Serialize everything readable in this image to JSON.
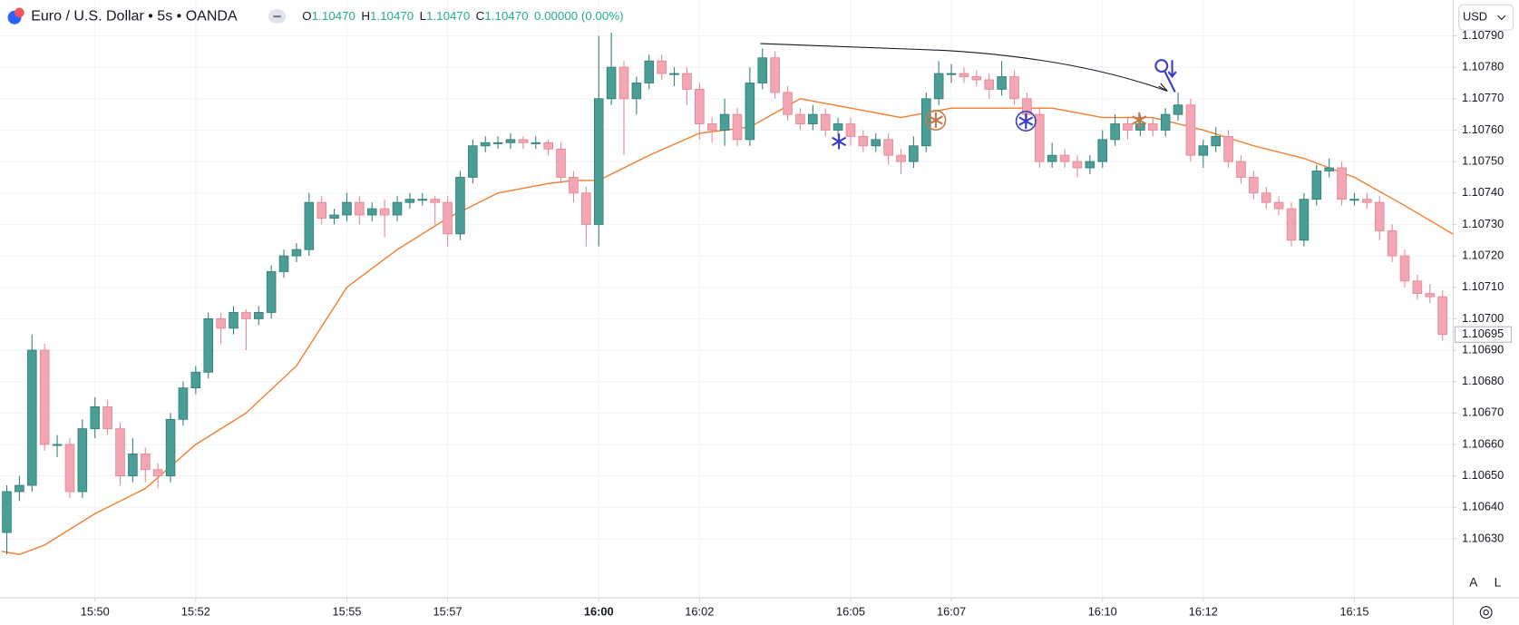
{
  "chart_data": {
    "type": "candlestick",
    "title": "Euro / U.S. Dollar • 5s • OANDA",
    "ohlc_header": [
      {
        "key": "O",
        "value": "1.10470"
      },
      {
        "key": "H",
        "value": "1.10470"
      },
      {
        "key": "L",
        "value": "1.10470"
      },
      {
        "key": "C",
        "value": "1.10470"
      }
    ],
    "change": "0.00000 (0.00%)",
    "currency": "USD",
    "scale_buttons": [
      "A",
      "L"
    ],
    "last_price": {
      "value": 1.10695,
      "label": "1.10695"
    },
    "up_color": "#4b9e97",
    "down_color": "#f3a6b3",
    "grid": true,
    "xlim": [
      -1.885,
      26.96
    ],
    "xticks": [
      {
        "value": 0,
        "label": "15:50"
      },
      {
        "value": 2,
        "label": "15:52"
      },
      {
        "value": 5,
        "label": "15:55"
      },
      {
        "value": 7,
        "label": "15:57"
      },
      {
        "value": 10,
        "label": "16:00",
        "bold": true
      },
      {
        "value": 12,
        "label": "16:02"
      },
      {
        "value": 15,
        "label": "16:05"
      },
      {
        "value": 17,
        "label": "16:07"
      },
      {
        "value": 20,
        "label": "16:10"
      },
      {
        "value": 22,
        "label": "16:12"
      },
      {
        "value": 25,
        "label": "16:15"
      }
    ],
    "ylim": [
      1.106112,
      1.108014
    ],
    "yticks": [
      {
        "value": 1.1063,
        "label": "1.10630"
      },
      {
        "value": 1.1064,
        "label": "1.10640"
      },
      {
        "value": 1.1065,
        "label": "1.10650"
      },
      {
        "value": 1.1066,
        "label": "1.10660"
      },
      {
        "value": 1.1067,
        "label": "1.10670"
      },
      {
        "value": 1.1068,
        "label": "1.10680"
      },
      {
        "value": 1.1069,
        "label": "1.10690"
      },
      {
        "value": 1.107,
        "label": "1.10700"
      },
      {
        "value": 1.1071,
        "label": "1.10710"
      },
      {
        "value": 1.1072,
        "label": "1.10720"
      },
      {
        "value": 1.1073,
        "label": "1.10730"
      },
      {
        "value": 1.1074,
        "label": "1.10740"
      },
      {
        "value": 1.1075,
        "label": "1.10750"
      },
      {
        "value": 1.1076,
        "label": "1.10760"
      },
      {
        "value": 1.1077,
        "label": "1.10770"
      },
      {
        "value": 1.1078,
        "label": "1.10780"
      },
      {
        "value": 1.1079,
        "label": "1.10790"
      }
    ],
    "x": [
      -1.75,
      -1.5,
      -1.25,
      -1,
      -0.75,
      -0.5,
      -0.25,
      0,
      0.25,
      0.5,
      0.75,
      1,
      1.25,
      1.5,
      1.75,
      2,
      2.25,
      2.5,
      2.75,
      3,
      3.25,
      3.5,
      3.75,
      4,
      4.25,
      4.5,
      4.75,
      5,
      5.25,
      5.5,
      5.75,
      6,
      6.25,
      6.5,
      6.75,
      7,
      7.25,
      7.5,
      7.75,
      8,
      8.25,
      8.5,
      8.75,
      9,
      9.25,
      9.5,
      9.75,
      10,
      10.25,
      10.5,
      10.75,
      11,
      11.25,
      11.5,
      11.75,
      12,
      12.25,
      12.5,
      12.75,
      13,
      13.25,
      13.5,
      13.75,
      14,
      14.25,
      14.5,
      14.75,
      15,
      15.25,
      15.5,
      15.75,
      16,
      16.25,
      16.5,
      16.75,
      17,
      17.25,
      17.5,
      17.75,
      18,
      18.25,
      18.5,
      18.75,
      19,
      19.25,
      19.5,
      19.75,
      20,
      20.25,
      20.5,
      20.75,
      21,
      21.25,
      21.5,
      21.75,
      22,
      22.25,
      22.5,
      22.75,
      23,
      23.25,
      23.5,
      23.75,
      24,
      24.25,
      24.5,
      24.75,
      25,
      25.25,
      25.5,
      25.75,
      26,
      26.25,
      26.5,
      26.75
    ],
    "ohlc": [
      [
        1.10632,
        1.10647,
        1.10625,
        1.10645
      ],
      [
        1.10645,
        1.1065,
        1.10642,
        1.10647
      ],
      [
        1.10647,
        1.10695,
        1.10645,
        1.1069
      ],
      [
        1.1069,
        1.10692,
        1.10658,
        1.1066
      ],
      [
        1.1066,
        1.10663,
        1.10656,
        1.1066
      ],
      [
        1.1066,
        1.10662,
        1.10643,
        1.10645
      ],
      [
        1.10645,
        1.10668,
        1.10643,
        1.10665
      ],
      [
        1.10665,
        1.10675,
        1.10662,
        1.10672
      ],
      [
        1.10672,
        1.10674,
        1.10663,
        1.10665
      ],
      [
        1.10665,
        1.10667,
        1.10647,
        1.1065
      ],
      [
        1.1065,
        1.10662,
        1.10648,
        1.10657
      ],
      [
        1.10657,
        1.10659,
        1.10648,
        1.10652
      ],
      [
        1.10652,
        1.10654,
        1.10646,
        1.1065
      ],
      [
        1.1065,
        1.1067,
        1.10648,
        1.10668
      ],
      [
        1.10668,
        1.1068,
        1.10666,
        1.10678
      ],
      [
        1.10678,
        1.10685,
        1.10676,
        1.10683
      ],
      [
        1.10683,
        1.10702,
        1.10681,
        1.107
      ],
      [
        1.107,
        1.10702,
        1.10692,
        1.10697
      ],
      [
        1.10697,
        1.10704,
        1.10695,
        1.10702
      ],
      [
        1.10702,
        1.10703,
        1.1069,
        1.107
      ],
      [
        1.107,
        1.10704,
        1.10698,
        1.10702
      ],
      [
        1.10702,
        1.10717,
        1.107,
        1.10715
      ],
      [
        1.10715,
        1.10722,
        1.10713,
        1.1072
      ],
      [
        1.1072,
        1.10724,
        1.10718,
        1.10722
      ],
      [
        1.10722,
        1.1074,
        1.1072,
        1.10737
      ],
      [
        1.10737,
        1.10739,
        1.1073,
        1.10732
      ],
      [
        1.10732,
        1.10735,
        1.1073,
        1.10733
      ],
      [
        1.10733,
        1.1074,
        1.10731,
        1.10737
      ],
      [
        1.10737,
        1.10739,
        1.1073,
        1.10733
      ],
      [
        1.10733,
        1.10737,
        1.10731,
        1.10735
      ],
      [
        1.10735,
        1.10738,
        1.10726,
        1.10733
      ],
      [
        1.10733,
        1.10739,
        1.10731,
        1.10737
      ],
      [
        1.10737,
        1.1074,
        1.10735,
        1.10738
      ],
      [
        1.10738,
        1.1074,
        1.10736,
        1.10738
      ],
      [
        1.10738,
        1.10739,
        1.1073,
        1.10737
      ],
      [
        1.10737,
        1.10739,
        1.10723,
        1.10727
      ],
      [
        1.10727,
        1.10747,
        1.10725,
        1.10745
      ],
      [
        1.10745,
        1.10757,
        1.10743,
        1.10755
      ],
      [
        1.10755,
        1.10758,
        1.10753,
        1.10756
      ],
      [
        1.10756,
        1.10758,
        1.10754,
        1.10756
      ],
      [
        1.10756,
        1.10759,
        1.10754,
        1.10757
      ],
      [
        1.10757,
        1.10758,
        1.10754,
        1.10756
      ],
      [
        1.10756,
        1.10758,
        1.10754,
        1.10756
      ],
      [
        1.10756,
        1.10757,
        1.10752,
        1.10754
      ],
      [
        1.10754,
        1.10756,
        1.10743,
        1.10745
      ],
      [
        1.10745,
        1.10747,
        1.10737,
        1.1074
      ],
      [
        1.1074,
        1.10742,
        1.10723,
        1.1073
      ],
      [
        1.1073,
        1.1079,
        1.10723,
        1.1077
      ],
      [
        1.1077,
        1.10791,
        1.10768,
        1.1078
      ],
      [
        1.1078,
        1.10782,
        1.10752,
        1.1077
      ],
      [
        1.1077,
        1.10777,
        1.10765,
        1.10775
      ],
      [
        1.10775,
        1.10784,
        1.10773,
        1.10782
      ],
      [
        1.10782,
        1.10784,
        1.10776,
        1.10778
      ],
      [
        1.10778,
        1.1078,
        1.10774,
        1.10778
      ],
      [
        1.10778,
        1.1078,
        1.10768,
        1.10773
      ],
      [
        1.10773,
        1.10775,
        1.10757,
        1.10762
      ],
      [
        1.10762,
        1.10764,
        1.10756,
        1.1076
      ],
      [
        1.1076,
        1.1077,
        1.10755,
        1.10765
      ],
      [
        1.10765,
        1.10767,
        1.10755,
        1.10757
      ],
      [
        1.10757,
        1.1078,
        1.10755,
        1.10775
      ],
      [
        1.10775,
        1.10786,
        1.10773,
        1.10783
      ],
      [
        1.10783,
        1.10785,
        1.1077,
        1.10772
      ],
      [
        1.10772,
        1.10774,
        1.10763,
        1.10765
      ],
      [
        1.10765,
        1.10767,
        1.1076,
        1.10762
      ],
      [
        1.10762,
        1.10768,
        1.1076,
        1.10765
      ],
      [
        1.10765,
        1.10767,
        1.10758,
        1.1076
      ],
      [
        1.1076,
        1.10764,
        1.10758,
        1.10762
      ],
      [
        1.10762,
        1.10764,
        1.10755,
        1.10758
      ],
      [
        1.10758,
        1.1076,
        1.10753,
        1.10755
      ],
      [
        1.10755,
        1.10759,
        1.10753,
        1.10757
      ],
      [
        1.10757,
        1.10759,
        1.10749,
        1.10752
      ],
      [
        1.10752,
        1.10754,
        1.10746,
        1.1075
      ],
      [
        1.1075,
        1.10758,
        1.10748,
        1.10755
      ],
      [
        1.10755,
        1.10772,
        1.10753,
        1.1077
      ],
      [
        1.1077,
        1.10782,
        1.10768,
        1.10778
      ],
      [
        1.10778,
        1.10781,
        1.10775,
        1.10778
      ],
      [
        1.10778,
        1.1078,
        1.10775,
        1.10777
      ],
      [
        1.10777,
        1.10779,
        1.10774,
        1.10776
      ],
      [
        1.10776,
        1.10778,
        1.1077,
        1.10773
      ],
      [
        1.10773,
        1.10782,
        1.10771,
        1.10777
      ],
      [
        1.10777,
        1.10779,
        1.10768,
        1.1077
      ],
      [
        1.1077,
        1.10772,
        1.10762,
        1.10765
      ],
      [
        1.10765,
        1.10767,
        1.10748,
        1.1075
      ],
      [
        1.1075,
        1.10756,
        1.10748,
        1.10752
      ],
      [
        1.10752,
        1.10754,
        1.10748,
        1.1075
      ],
      [
        1.1075,
        1.10752,
        1.10745,
        1.10748
      ],
      [
        1.10748,
        1.10752,
        1.10746,
        1.1075
      ],
      [
        1.1075,
        1.1076,
        1.10748,
        1.10757
      ],
      [
        1.10757,
        1.10765,
        1.10755,
        1.10762
      ],
      [
        1.10762,
        1.10764,
        1.10757,
        1.1076
      ],
      [
        1.1076,
        1.10765,
        1.10758,
        1.10762
      ],
      [
        1.10762,
        1.10764,
        1.10758,
        1.1076
      ],
      [
        1.1076,
        1.10767,
        1.10758,
        1.10765
      ],
      [
        1.10765,
        1.10772,
        1.10763,
        1.10768
      ],
      [
        1.10768,
        1.1077,
        1.1075,
        1.10752
      ],
      [
        1.10752,
        1.10757,
        1.10748,
        1.10755
      ],
      [
        1.10755,
        1.10761,
        1.10753,
        1.10758
      ],
      [
        1.10758,
        1.1076,
        1.10748,
        1.1075
      ],
      [
        1.1075,
        1.10752,
        1.10743,
        1.10745
      ],
      [
        1.10745,
        1.10747,
        1.10738,
        1.1074
      ],
      [
        1.1074,
        1.10742,
        1.10735,
        1.10737
      ],
      [
        1.10737,
        1.10739,
        1.10733,
        1.10735
      ],
      [
        1.10735,
        1.10737,
        1.10723,
        1.10725
      ],
      [
        1.10725,
        1.1074,
        1.10723,
        1.10738
      ],
      [
        1.10738,
        1.10749,
        1.10736,
        1.10747
      ],
      [
        1.10747,
        1.10751,
        1.10745,
        1.10748
      ],
      [
        1.10748,
        1.1075,
        1.10736,
        1.10738
      ],
      [
        1.10738,
        1.1074,
        1.10736,
        1.10738
      ],
      [
        1.10738,
        1.1074,
        1.10735,
        1.10737
      ],
      [
        1.10737,
        1.10739,
        1.10725,
        1.10728
      ],
      [
        1.10728,
        1.1073,
        1.10718,
        1.1072
      ],
      [
        1.1072,
        1.10722,
        1.1071,
        1.10712
      ],
      [
        1.10712,
        1.10714,
        1.10706,
        1.10708
      ],
      [
        1.10708,
        1.10711,
        1.10705,
        1.10707
      ],
      [
        1.10707,
        1.10709,
        1.10693,
        1.10695
      ]
    ],
    "ma": {
      "color": "#f57c2a",
      "x": [
        -1.85,
        -1.5,
        -1,
        0,
        1,
        2,
        3,
        4,
        5,
        6,
        7,
        8,
        9,
        9.5,
        10,
        11,
        12,
        13,
        14,
        15,
        16,
        17,
        18,
        19,
        20,
        21,
        22,
        23,
        24,
        25,
        26,
        26.95
      ],
      "values": [
        1.10626,
        1.10625,
        1.10628,
        1.10638,
        1.10646,
        1.1066,
        1.1067,
        1.10685,
        1.1071,
        1.10722,
        1.10732,
        1.1074,
        1.10743,
        1.10744,
        1.10744,
        1.10752,
        1.10759,
        1.10761,
        1.1077,
        1.10767,
        1.10764,
        1.10767,
        1.10767,
        1.10767,
        1.10764,
        1.10764,
        1.1076,
        1.10755,
        1.10751,
        1.10745,
        1.10736,
        1.10727
      ]
    }
  }
}
